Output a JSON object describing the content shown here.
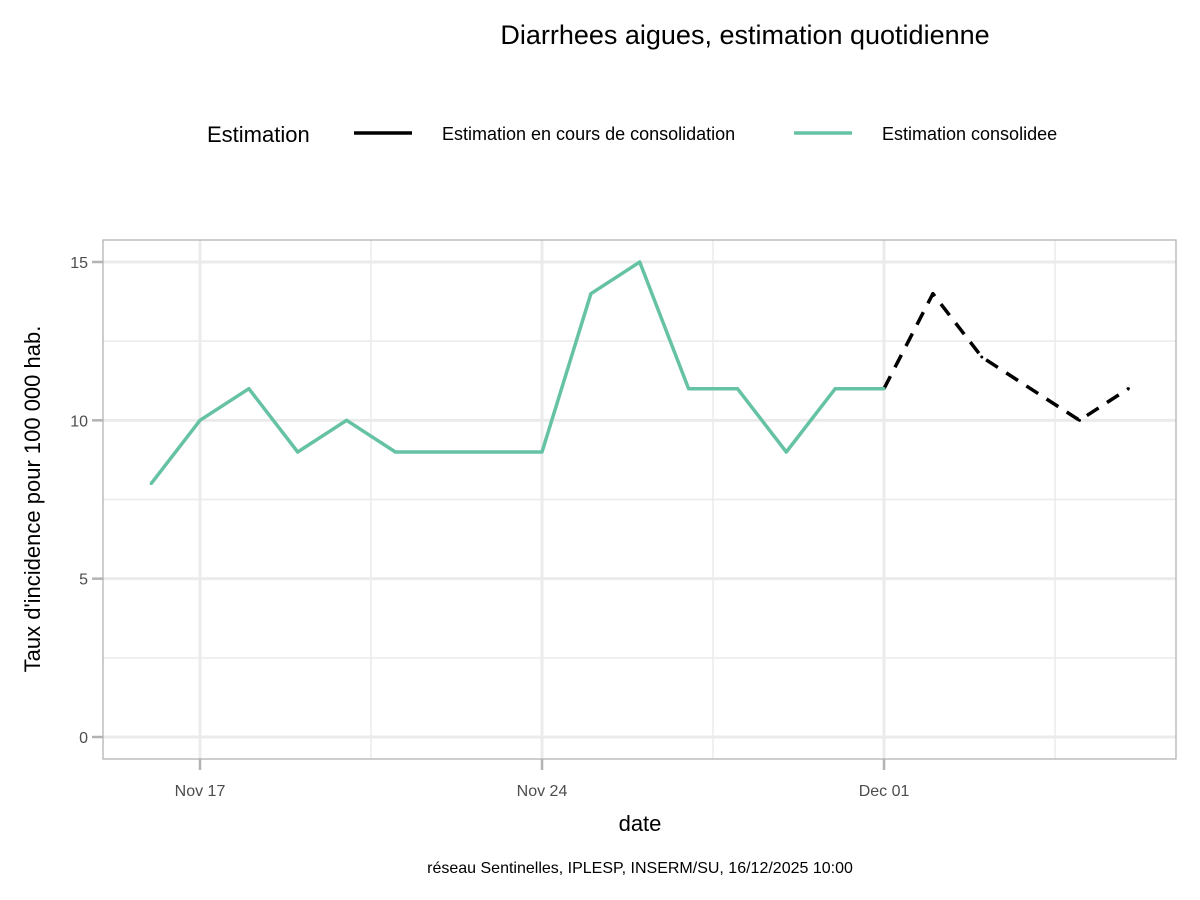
{
  "chart_data": {
    "type": "line",
    "title": "Diarrhees aigues, estimation quotidienne",
    "xlabel": "date",
    "ylabel": "Taux d'incidence pour 100 000 hab.",
    "caption": "réseau Sentinelles, IPLESP, INSERM/SU, 16/12/2025 10:00",
    "ylim": [
      0,
      15
    ],
    "y_ticks": [
      "0",
      "5",
      "10",
      "15"
    ],
    "x_ticks": [
      {
        "date": "2025-11-17",
        "label": "Nov 17"
      },
      {
        "date": "2025-11-24",
        "label": "Nov 24"
      },
      {
        "date": "2025-12-01",
        "label": "Dec 01"
      }
    ],
    "grid": true,
    "legend": {
      "title": "Estimation",
      "position": "top",
      "entries": [
        "Estimation en cours de consolidation",
        "Estimation consolidee"
      ]
    },
    "series": [
      {
        "name": "Estimation en cours de consolidation",
        "color": "#000000",
        "style": "dashed",
        "points": [
          {
            "date": "2025-12-01",
            "y": 11
          },
          {
            "date": "2025-12-02",
            "y": 14
          },
          {
            "date": "2025-12-03",
            "y": 12
          },
          {
            "date": "2025-12-04",
            "y": 11
          },
          {
            "date": "2025-12-05",
            "y": 10
          },
          {
            "date": "2025-12-06",
            "y": 11
          }
        ]
      },
      {
        "name": "Estimation consolidee",
        "color": "#66c2a5",
        "style": "solid",
        "points": [
          {
            "date": "2025-11-16",
            "y": 8
          },
          {
            "date": "2025-11-17",
            "y": 10
          },
          {
            "date": "2025-11-18",
            "y": 11
          },
          {
            "date": "2025-11-19",
            "y": 9
          },
          {
            "date": "2025-11-20",
            "y": 10
          },
          {
            "date": "2025-11-21",
            "y": 9
          },
          {
            "date": "2025-11-22",
            "y": 9
          },
          {
            "date": "2025-11-23",
            "y": 9
          },
          {
            "date": "2025-11-24",
            "y": 9
          },
          {
            "date": "2025-11-25",
            "y": 14
          },
          {
            "date": "2025-11-26",
            "y": 15
          },
          {
            "date": "2025-11-27",
            "y": 11
          },
          {
            "date": "2025-11-28",
            "y": 11
          },
          {
            "date": "2025-11-29",
            "y": 9
          },
          {
            "date": "2025-11-30",
            "y": 11
          },
          {
            "date": "2025-12-01",
            "y": 11
          }
        ]
      }
    ]
  }
}
